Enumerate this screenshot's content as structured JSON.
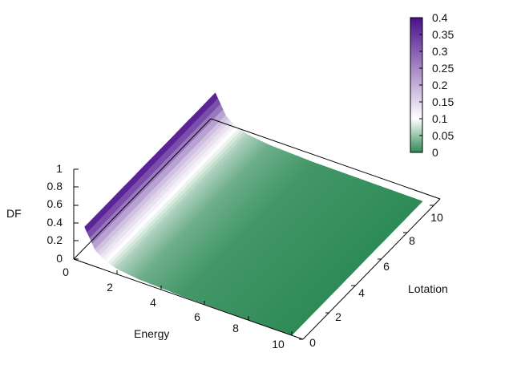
{
  "chart_data": {
    "type": "surface",
    "title": "",
    "xlabel": "Energy",
    "ylabel": "Lotation",
    "zlabel": "DF",
    "xlim": [
      0,
      10.5
    ],
    "ylim": [
      0,
      10.5
    ],
    "zlim": [
      0,
      1
    ],
    "x_ticks": [
      "0",
      "2",
      "4",
      "6",
      "8",
      "10"
    ],
    "y_ticks": [
      "0",
      "2",
      "4",
      "6",
      "8",
      "10"
    ],
    "z_ticks": [
      "0",
      "0.2",
      "0.4",
      "0.6",
      "0.8",
      "1"
    ],
    "surface_samples": [
      {
        "energy": 0.5,
        "df": 0.4
      },
      {
        "energy": 1.0,
        "df": 0.18
      },
      {
        "energy": 1.5,
        "df": 0.1
      },
      {
        "energy": 2.0,
        "df": 0.06
      },
      {
        "energy": 3.0,
        "df": 0.03
      },
      {
        "energy": 5.0,
        "df": 0.01
      },
      {
        "energy": 10.0,
        "df": 0.0
      }
    ],
    "colorbar": {
      "range": [
        0,
        0.4
      ],
      "ticks": [
        "0",
        "0.05",
        "0.1",
        "0.15",
        "0.2",
        "0.25",
        "0.3",
        "0.35",
        "0.4"
      ],
      "palette": [
        "#2e8b57",
        "#ffffff",
        "#4b0f8c"
      ]
    },
    "grid": false,
    "legend_position": "top-right"
  }
}
